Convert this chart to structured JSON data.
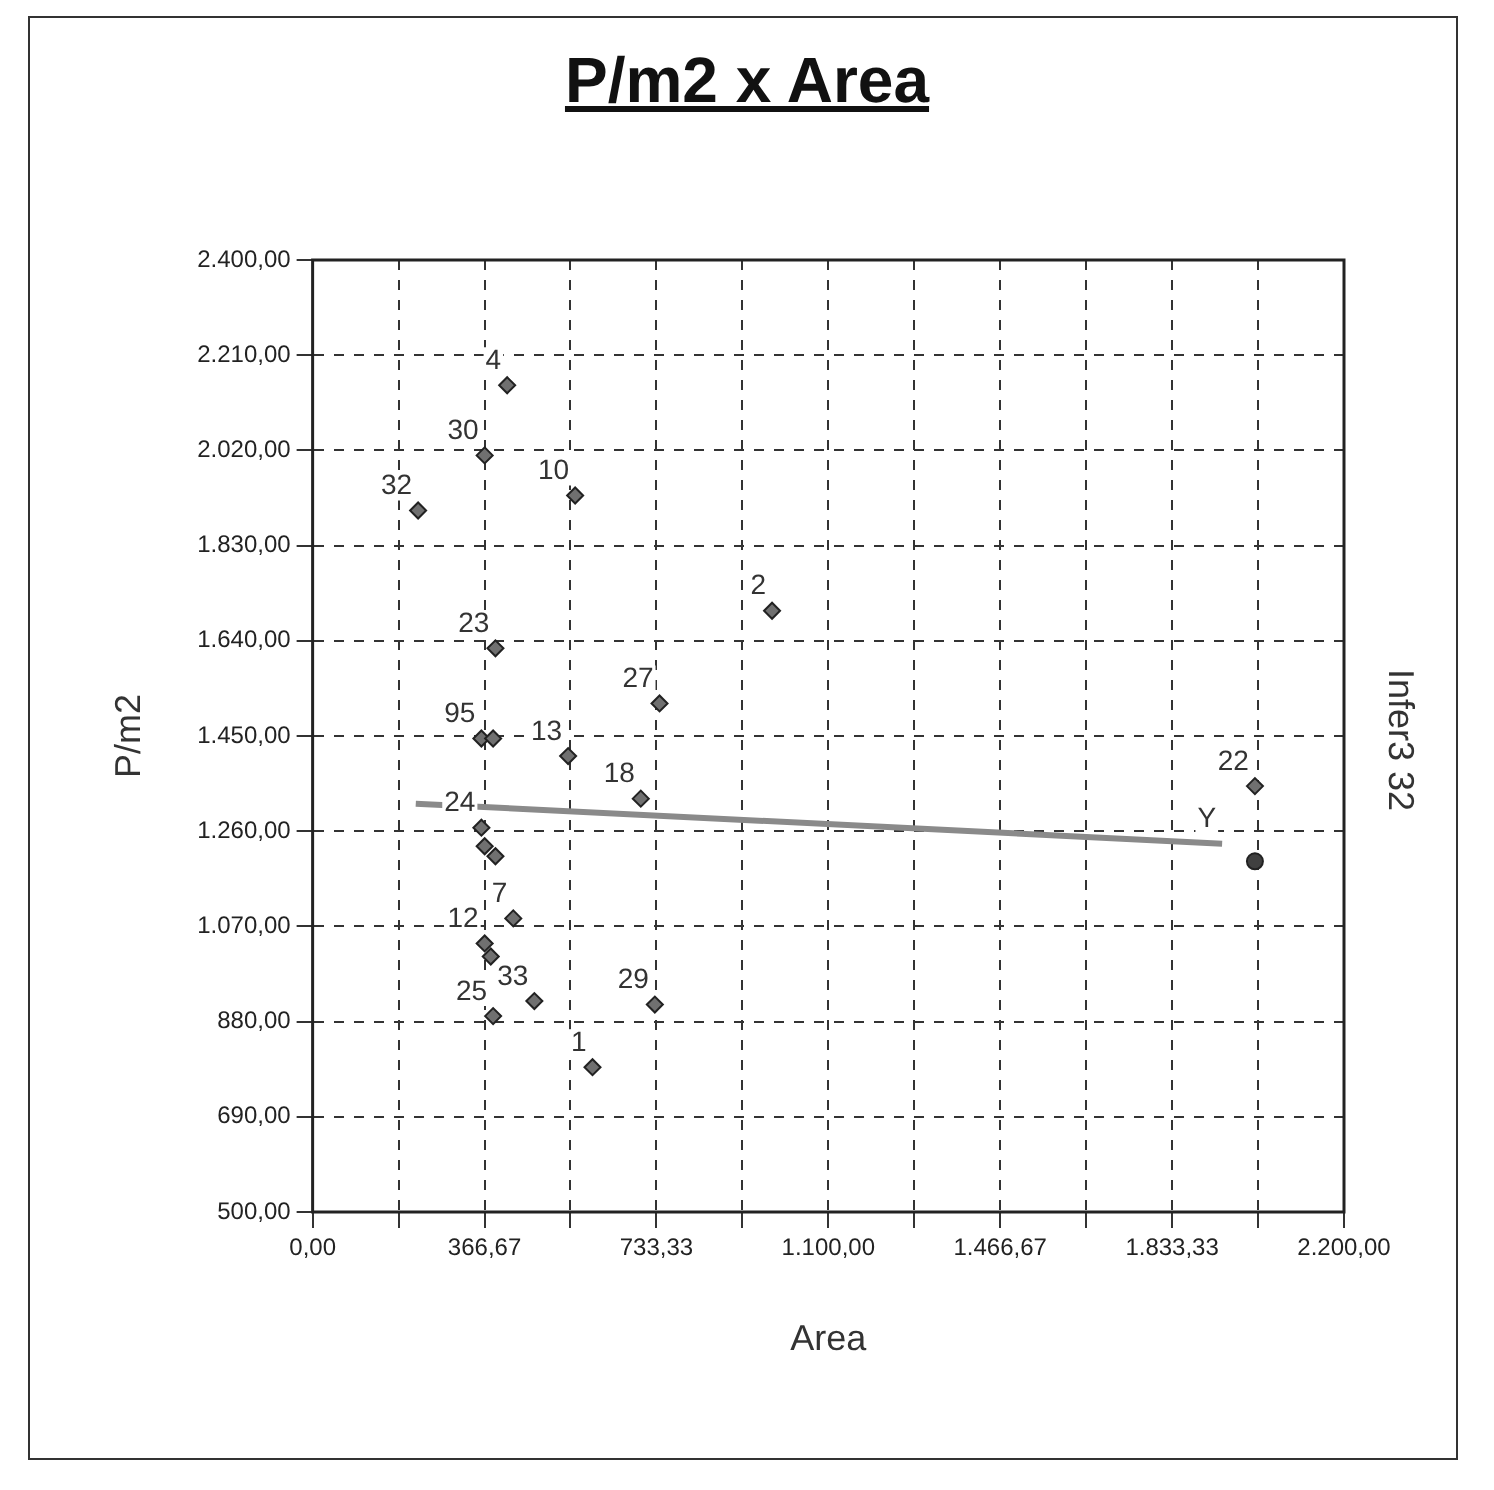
{
  "chart_data": {
    "type": "scatter",
    "title": "P/m2 x Area",
    "xlabel": "Area",
    "ylabel": "P/m2",
    "y2label": "Infer3 32",
    "xlim": [
      0,
      2200
    ],
    "ylim": [
      500,
      2400
    ],
    "xticks": [
      {
        "value": 0,
        "label": "0,00"
      },
      {
        "value": 183.33,
        "label": null
      },
      {
        "value": 366.67,
        "label": "366,67"
      },
      {
        "value": 550,
        "label": null
      },
      {
        "value": 733.33,
        "label": "733,33"
      },
      {
        "value": 916.67,
        "label": null
      },
      {
        "value": 1100,
        "label": "1.100,00"
      },
      {
        "value": 1283.33,
        "label": null
      },
      {
        "value": 1466.67,
        "label": "1.466,67"
      },
      {
        "value": 1650,
        "label": null
      },
      {
        "value": 1833.33,
        "label": "1.833,33"
      },
      {
        "value": 2016.67,
        "label": null
      },
      {
        "value": 2200,
        "label": "2.200,00"
      }
    ],
    "yticks": [
      {
        "value": 500,
        "label": "500,00"
      },
      {
        "value": 690,
        "label": "690,00"
      },
      {
        "value": 880,
        "label": "880,00"
      },
      {
        "value": 1070,
        "label": "1.070,00"
      },
      {
        "value": 1260,
        "label": "1.260,00"
      },
      {
        "value": 1450,
        "label": "1.450,00"
      },
      {
        "value": 1640,
        "label": "1.640,00"
      },
      {
        "value": 1830,
        "label": "1.830,00"
      },
      {
        "value": 2020,
        "label": "2.020,00"
      },
      {
        "value": 2210,
        "label": "2.210,00"
      },
      {
        "value": 2400,
        "label": "2.400,00"
      }
    ],
    "grid": true,
    "legend": false,
    "marker": "diamond",
    "line_style": "solid",
    "series": [
      {
        "color": "#707070",
        "x": [
          415,
          367,
          225,
          560,
          980,
          390,
          740,
          360,
          385,
          545,
          700,
          2010,
          360,
          367,
          390,
          428,
          367,
          380,
          473,
          385,
          730,
          597
        ],
        "values": [
          2150,
          2010,
          1900,
          1930,
          1700,
          1625,
          1515,
          1445,
          1445,
          1410,
          1325,
          1350,
          1267,
          1230,
          1210,
          1086,
          1036,
          1010,
          921,
          891,
          914,
          789
        ]
      },
      {
        "type": "scatter",
        "color": "#404040",
        "marker": "circle",
        "x": [
          2010
        ],
        "values": [
          1200
        ]
      },
      {
        "type": "line",
        "color": "#8a8a8a",
        "marker": "none",
        "x": [
          220,
          1940
        ],
        "values": [
          1315,
          1235
        ]
      }
    ],
    "annotations": [
      {
        "text": "4",
        "x": 415,
        "y": 2150
      },
      {
        "text": "30",
        "x": 367,
        "y": 2010
      },
      {
        "text": "32",
        "x": 225,
        "y": 1900
      },
      {
        "text": "10",
        "x": 560,
        "y": 1930
      },
      {
        "text": "2",
        "x": 980,
        "y": 1700
      },
      {
        "text": "23",
        "x": 390,
        "y": 1625
      },
      {
        "text": "27",
        "x": 740,
        "y": 1515
      },
      {
        "text": "95",
        "x": 360,
        "y": 1445
      },
      {
        "text": "13",
        "x": 545,
        "y": 1410
      },
      {
        "text": "18",
        "x": 700,
        "y": 1325
      },
      {
        "text": "22",
        "x": 2010,
        "y": 1350
      },
      {
        "text": "24",
        "x": 360,
        "y": 1267
      },
      {
        "text": "7",
        "x": 428,
        "y": 1086
      },
      {
        "text": "12",
        "x": 367,
        "y": 1036
      },
      {
        "text": "33",
        "x": 473,
        "y": 921
      },
      {
        "text": "25",
        "x": 385,
        "y": 891
      },
      {
        "text": "29",
        "x": 730,
        "y": 914
      },
      {
        "text": "1",
        "x": 597,
        "y": 789
      },
      {
        "text": "Y",
        "x": 1940,
        "y": 1235
      }
    ]
  }
}
